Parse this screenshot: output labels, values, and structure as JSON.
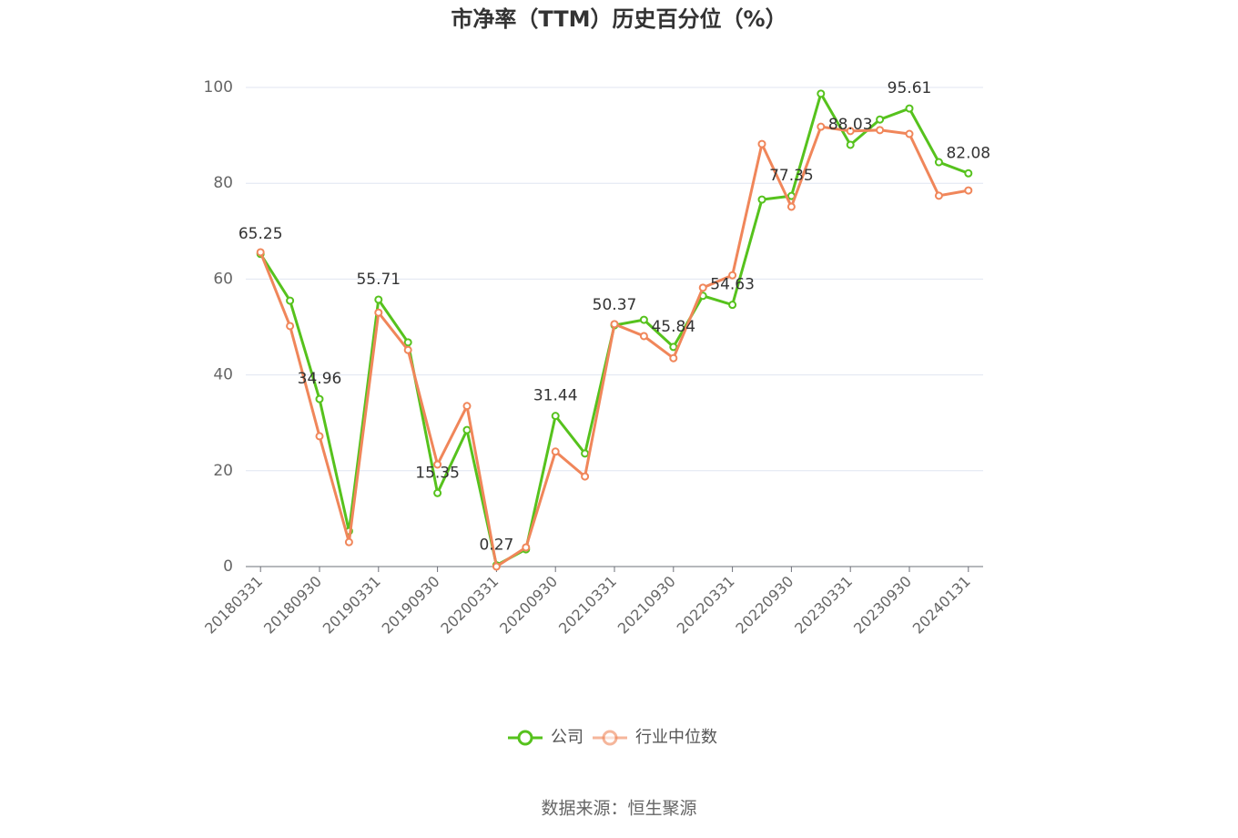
{
  "chart_data": {
    "type": "line",
    "title": "市净率（TTM）历史百分位（%）",
    "source": "数据来源：恒生聚源",
    "categories": [
      "20180331",
      null,
      "20180930",
      null,
      "20190331",
      null,
      "20190930",
      null,
      "20200331",
      null,
      "20200930",
      null,
      "20210331",
      null,
      "20210930",
      null,
      "20220331",
      null,
      "20220930",
      null,
      "20230331",
      null,
      "20230930",
      null,
      "20240131"
    ],
    "series": [
      {
        "name": "公司",
        "color": "#56c21d",
        "values": [
          65.25,
          55.5,
          34.96,
          7.4,
          55.71,
          46.8,
          15.35,
          28.5,
          0.27,
          3.6,
          31.44,
          23.6,
          50.37,
          51.5,
          45.84,
          56.5,
          54.63,
          76.6,
          77.35,
          98.7,
          88.03,
          93.3,
          95.61,
          84.4,
          82.08
        ]
      },
      {
        "name": "行业中位数",
        "color": "#f0865a",
        "values": [
          65.6,
          50.2,
          27.2,
          5.1,
          53.0,
          45.2,
          21.3,
          33.5,
          0,
          4.0,
          24.0,
          18.8,
          50.6,
          48.1,
          43.5,
          58.2,
          60.8,
          88.2,
          75.1,
          91.8,
          90.9,
          91.1,
          90.3,
          77.4,
          78.5
        ]
      }
    ],
    "ylim": [
      0,
      100
    ],
    "yticks": [
      0,
      20,
      40,
      60,
      80,
      100
    ],
    "grid": true,
    "legend": "bottom"
  }
}
